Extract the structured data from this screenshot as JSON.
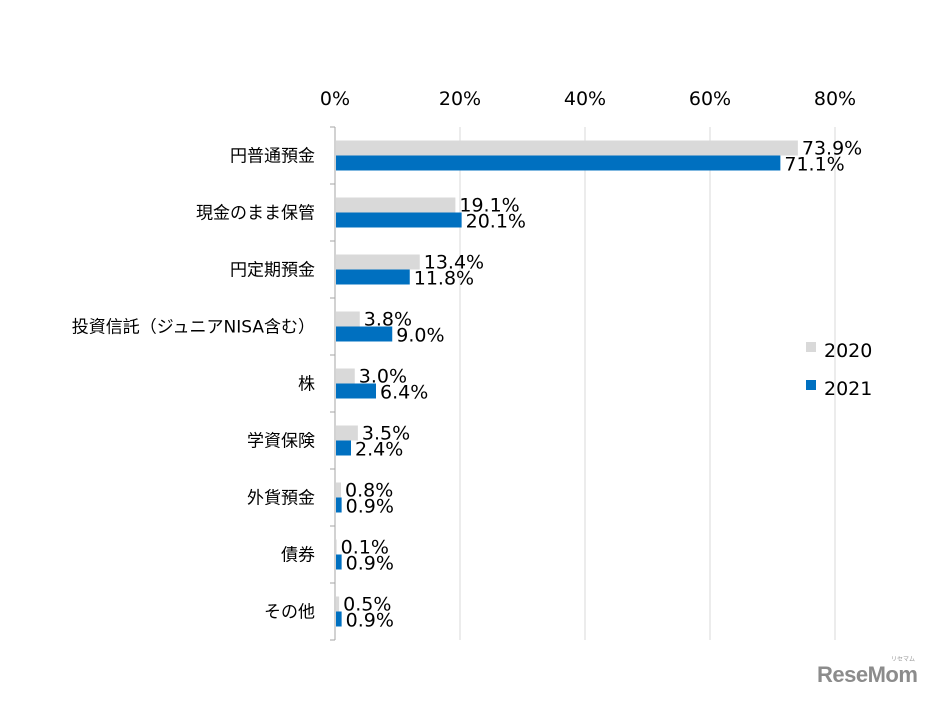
{
  "chart_data": {
    "type": "bar",
    "orientation": "horizontal",
    "categories": [
      "円普通預金",
      "現金のまま保管",
      "円定期預金",
      "投資信託（ジュニアNISA含む）",
      "株",
      "学資保険",
      "外貨預金",
      "債券",
      "その他"
    ],
    "series": [
      {
        "name": "2020",
        "color": "#d9d9d9",
        "values": [
          73.9,
          19.1,
          13.4,
          3.8,
          3.0,
          3.5,
          0.8,
          0.1,
          0.5
        ],
        "labels": [
          "73.9%",
          "19.1%",
          "13.4%",
          "3.8%",
          "3.0%",
          "3.5%",
          "0.8%",
          "0.1%",
          "0.5%"
        ]
      },
      {
        "name": "2021",
        "color": "#0070c0",
        "values": [
          71.1,
          20.1,
          11.8,
          9.0,
          6.4,
          2.4,
          0.9,
          0.9,
          0.9
        ],
        "labels": [
          "71.1%",
          "20.1%",
          "11.8%",
          "9.0%",
          "6.4%",
          "2.4%",
          "0.9%",
          "0.9%",
          "0.9%"
        ]
      }
    ],
    "xlim": [
      0,
      80
    ],
    "xticks": [
      "0%",
      "20%",
      "40%",
      "60%",
      "80%"
    ],
    "xtick_values": [
      0,
      20,
      40,
      60,
      80
    ],
    "axis_position": "top",
    "grid": true,
    "legend_position": "right",
    "title": "",
    "xlabel": "",
    "ylabel": ""
  },
  "watermark": {
    "text": "ReseMom",
    "small_text": "リセマム"
  }
}
